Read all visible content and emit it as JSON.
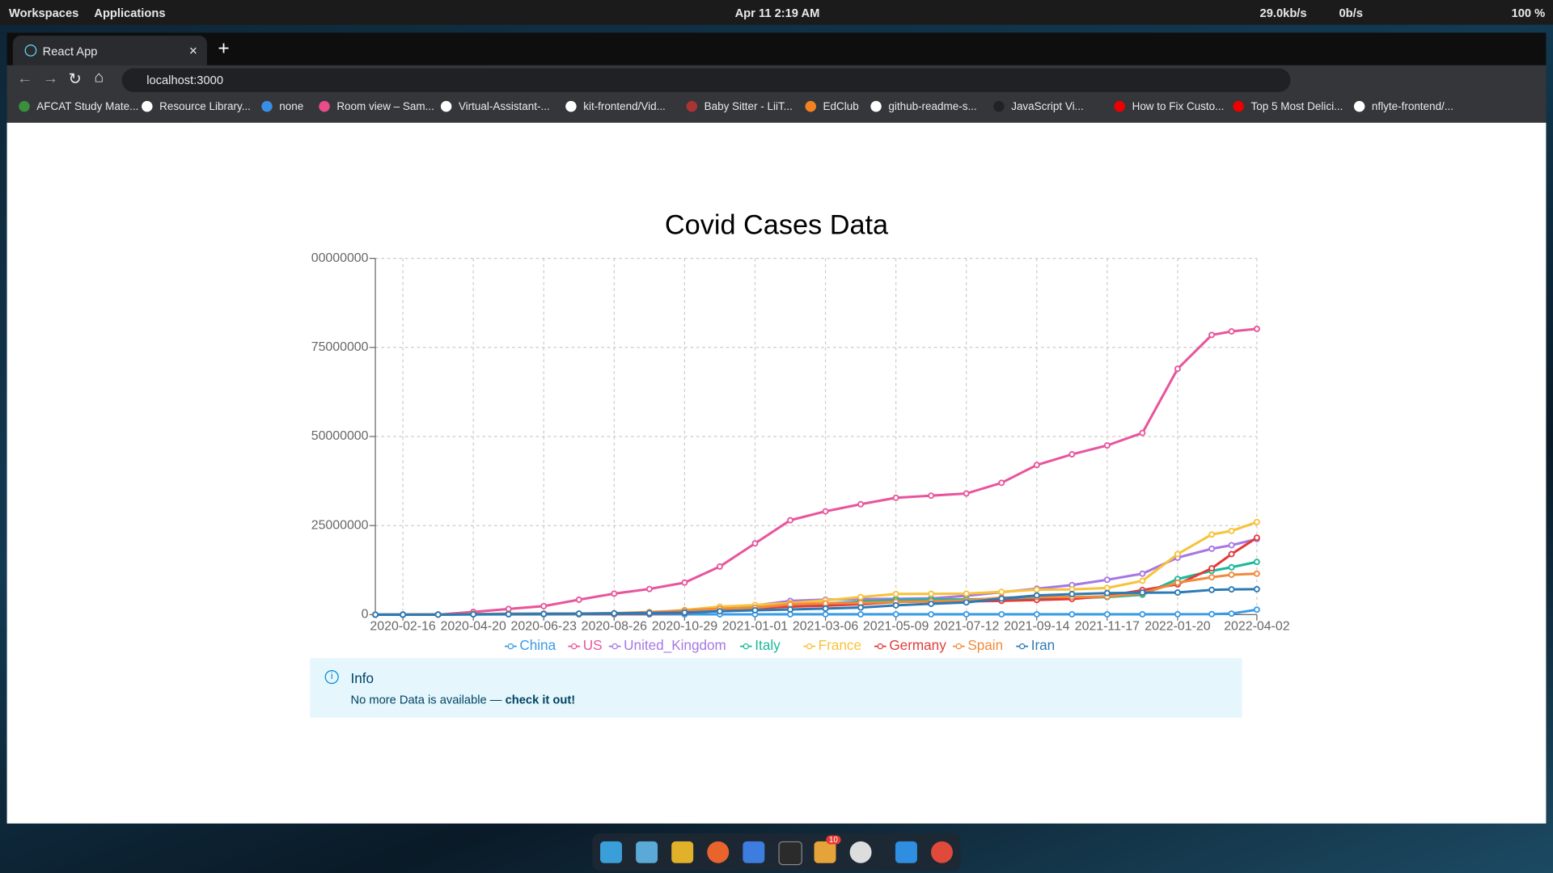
{
  "system_bar": {
    "workspaces": "Workspaces",
    "applications": "Applications",
    "clock": "Apr 11  2:19 AM",
    "down_speed": "29.0kb/s",
    "up_speed": "0b/s",
    "battery": "100 %"
  },
  "browser": {
    "tab_title": "React App",
    "url": "localhost:3000",
    "bookmarks": [
      "AFCAT Study Mate...",
      "Resource Library...",
      "none",
      "Room view – Sam...",
      "Virtual-Assistant-...",
      "kit-frontend/Vid...",
      "Baby Sitter - LiiT...",
      "EdClub",
      "github-readme-s...",
      "JavaScript Vi...",
      "How to Fix Custo...",
      "Top 5 Most Delici...",
      "nflyte-frontend/..."
    ]
  },
  "chart_data": {
    "type": "line",
    "title": "Covid Cases Data",
    "x": [
      "2020-01-22",
      "2020-02-16",
      "2020-03-19",
      "2020-04-20",
      "2020-05-22",
      "2020-06-23",
      "2020-07-25",
      "2020-08-26",
      "2020-09-27",
      "2020-10-29",
      "2020-11-30",
      "2021-01-01",
      "2021-02-02",
      "2021-03-06",
      "2021-04-07",
      "2021-05-09",
      "2021-06-10",
      "2021-07-12",
      "2021-08-13",
      "2021-09-14",
      "2021-10-16",
      "2021-11-17",
      "2021-12-19",
      "2022-01-20",
      "2022-02-20",
      "2022-03-10",
      "2022-04-02"
    ],
    "xlim": [
      "2020-01-22",
      "2022-04-02"
    ],
    "xticks": [
      "2020-02-16",
      "2020-04-20",
      "2020-06-23",
      "2020-08-26",
      "2020-10-29",
      "2021-01-01",
      "2021-03-06",
      "2021-05-09",
      "2021-07-12",
      "2021-09-14",
      "2021-11-17",
      "2022-01-20",
      "2022-04-02"
    ],
    "ylim": [
      0,
      100000000
    ],
    "yticks": [
      0,
      25000000,
      50000000,
      75000000,
      {
        "value": 100000000,
        "label": "00000000"
      }
    ],
    "grid": true,
    "series": [
      {
        "name": "China",
        "color": "#3a9be6",
        "values": [
          548,
          70000,
          81000,
          84000,
          84000,
          85000,
          87000,
          90000,
          91000,
          91500,
          93000,
          96000,
          100000,
          101000,
          102000,
          103000,
          104000,
          105000,
          107000,
          108000,
          109000,
          110000,
          112000,
          115000,
          150000,
          300000,
          1400000
        ]
      },
      {
        "name": "US",
        "color": "#e9559d",
        "values": [
          1,
          15,
          13000,
          780000,
          1600000,
          2400000,
          4200000,
          5900000,
          7200000,
          9000000,
          13500000,
          20000000,
          26500000,
          29000000,
          31000000,
          32800000,
          33400000,
          34000000,
          37000000,
          42000000,
          45000000,
          47500000,
          51000000,
          69000000,
          78500000,
          79500000,
          80200000
        ]
      },
      {
        "name": "United_Kingdom",
        "color": "#a678e3",
        "values": [
          0,
          9,
          3000,
          125000,
          255000,
          306000,
          300000,
          330000,
          430000,
          950000,
          1630000,
          2550000,
          3850000,
          4220000,
          4370000,
          4440000,
          4580000,
          5300000,
          6300000,
          7300000,
          8300000,
          9800000,
          11500000,
          16000000,
          18500000,
          19500000,
          21200000
        ]
      },
      {
        "name": "Italy",
        "color": "#19b99a",
        "values": [
          0,
          3,
          41000,
          181000,
          229000,
          239000,
          246000,
          262000,
          312000,
          590000,
          1600000,
          2100000,
          2570000,
          3100000,
          3700000,
          4120000,
          4240000,
          4270000,
          4450000,
          4610000,
          4720000,
          4930000,
          5600000,
          10000000,
          12300000,
          13300000,
          14800000
        ]
      },
      {
        "name": "France",
        "color": "#f8c23a",
        "values": [
          0,
          12,
          10000,
          155000,
          180000,
          196000,
          220000,
          290000,
          540000,
          1300000,
          2250000,
          2700000,
          3250000,
          4000000,
          4950000,
          5800000,
          5850000,
          5900000,
          6400000,
          7000000,
          7100000,
          7500000,
          9500000,
          17000000,
          22500000,
          23500000,
          26000000
        ]
      },
      {
        "name": "Germany",
        "color": "#e23b3b",
        "values": [
          0,
          16,
          17000,
          147000,
          179000,
          193000,
          206000,
          236000,
          290000,
          500000,
          1070000,
          1760000,
          2250000,
          2520000,
          2930000,
          3560000,
          3720000,
          3740000,
          3870000,
          4120000,
          4420000,
          5200000,
          6900000,
          8500000,
          13000000,
          17000000,
          21600000
        ]
      },
      {
        "name": "Spain",
        "color": "#f08b3c",
        "values": [
          0,
          2,
          17000,
          200000,
          234000,
          247000,
          272000,
          420000,
          730000,
          1160000,
          1650000,
          1930000,
          2910000,
          3170000,
          3330000,
          3580000,
          3740000,
          4010000,
          4770000,
          4950000,
          4990000,
          5070000,
          6000000,
          9000000,
          10500000,
          11200000,
          11500000
        ]
      },
      {
        "name": "Iran",
        "color": "#2c7bb6",
        "values": [
          0,
          0,
          18000,
          84000,
          131000,
          212000,
          290000,
          365000,
          450000,
          600000,
          950000,
          1230000,
          1450000,
          1710000,
          2000000,
          2620000,
          3050000,
          3450000,
          4500000,
          5400000,
          5760000,
          6050000,
          6180000,
          6220000,
          6950000,
          7100000,
          7150000
        ]
      }
    ]
  },
  "info": {
    "title": "Info",
    "text": "No more Data is available —",
    "link": "check it out!"
  },
  "dock": {
    "badge": "10"
  }
}
